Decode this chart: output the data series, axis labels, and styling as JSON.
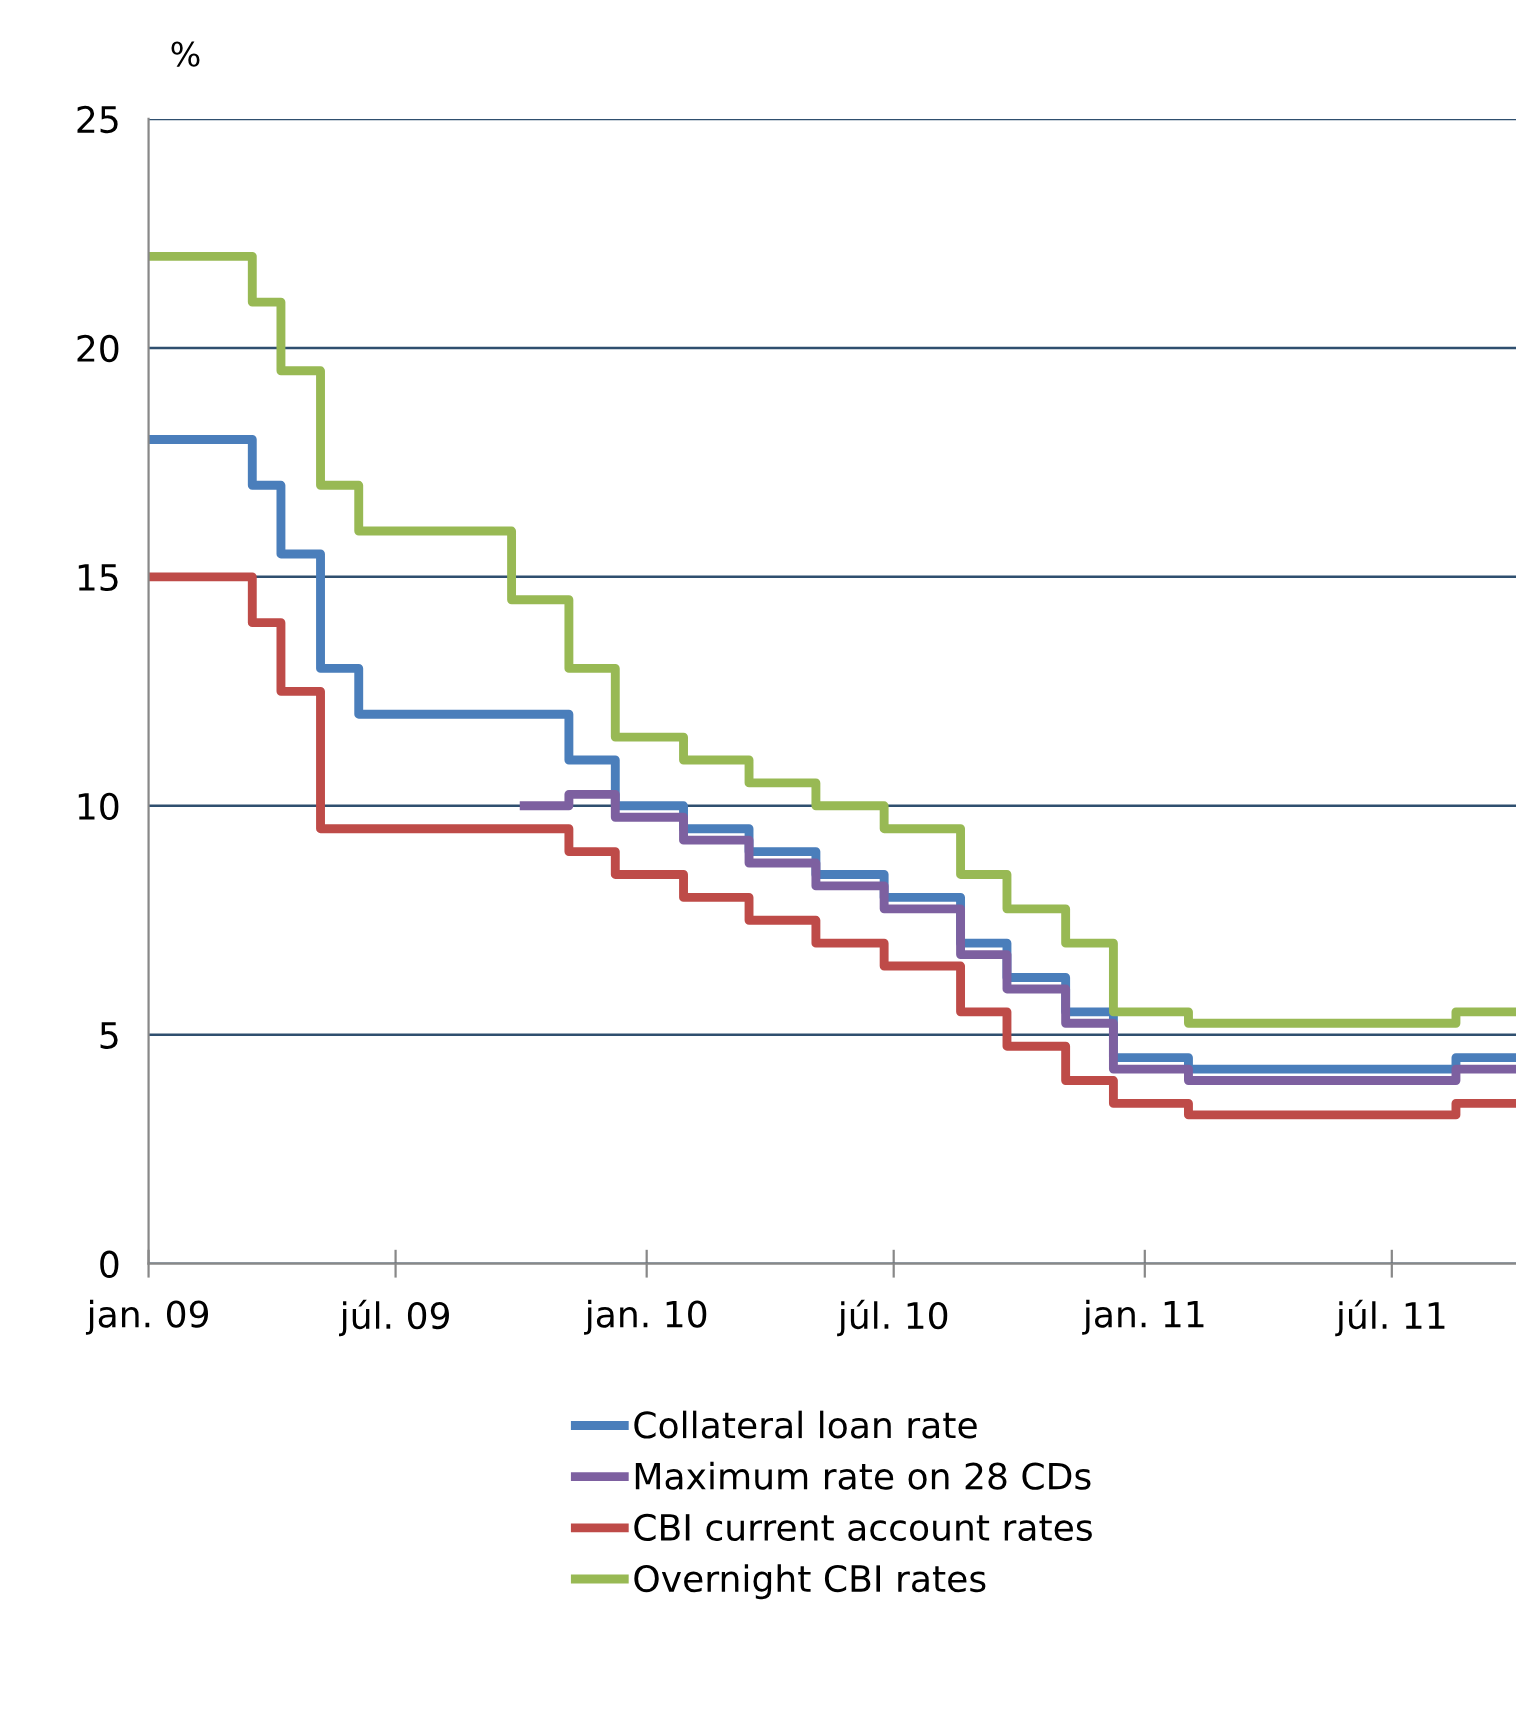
{
  "chart_data": {
    "type": "step",
    "ylabel": "%",
    "xlim": [
      "2009-01-01",
      "2011-09-30"
    ],
    "ylim": [
      0,
      25
    ],
    "yticks": [
      0,
      5,
      10,
      15,
      20,
      25
    ],
    "xticks": [
      {
        "value": "2009-01-01",
        "label": "jan. 09"
      },
      {
        "value": "2009-07-01",
        "label": "júl. 09"
      },
      {
        "value": "2010-01-01",
        "label": "jan. 10"
      },
      {
        "value": "2010-07-01",
        "label": "júl. 10"
      },
      {
        "value": "2011-01-01",
        "label": "jan. 11"
      },
      {
        "value": "2011-07-01",
        "label": "júl. 11"
      }
    ],
    "grid": "y",
    "legend": "bottom",
    "line_style": "solid",
    "marker": "none",
    "series": [
      {
        "name": "Collateral loan rate",
        "color": "#4a7ebb",
        "x": [
          "2009-01-01",
          "2009-03-18",
          "2009-04-08",
          "2009-05-07",
          "2009-06-04",
          "2009-11-05",
          "2009-12-09",
          "2010-01-28",
          "2010-03-17",
          "2010-05-05",
          "2010-06-24",
          "2010-08-19",
          "2010-09-22",
          "2010-11-04",
          "2010-12-09",
          "2011-02-02",
          "2011-08-17",
          "2011-09-30"
        ],
        "values": [
          18,
          17,
          15.5,
          13,
          12,
          11,
          10,
          9.5,
          9,
          8.5,
          8,
          7,
          6.25,
          5.5,
          4.5,
          4.25,
          4.5,
          4.5
        ]
      },
      {
        "name": "Maximum rate on 28 CDs",
        "color": "#7d60a0",
        "x": [
          "2009-09-30",
          "2009-11-05",
          "2009-12-09",
          "2010-01-28",
          "2010-03-17",
          "2010-05-05",
          "2010-06-24",
          "2010-08-19",
          "2010-09-22",
          "2010-11-04",
          "2010-12-09",
          "2011-02-02",
          "2011-08-17",
          "2011-09-30"
        ],
        "values": [
          10,
          10.25,
          9.75,
          9.25,
          8.75,
          8.25,
          7.75,
          6.75,
          6,
          5.25,
          4.25,
          4,
          4.25,
          4.25
        ]
      },
      {
        "name": "CBI current account rates",
        "color": "#be4b48",
        "x": [
          "2009-01-01",
          "2009-03-18",
          "2009-04-08",
          "2009-05-07",
          "2009-11-05",
          "2009-12-09",
          "2010-01-28",
          "2010-03-17",
          "2010-05-05",
          "2010-06-24",
          "2010-08-19",
          "2010-09-22",
          "2010-11-04",
          "2010-12-09",
          "2011-02-02",
          "2011-08-17",
          "2011-09-30"
        ],
        "values": [
          15,
          14,
          12.5,
          9.5,
          9,
          8.5,
          8,
          7.5,
          7,
          6.5,
          5.5,
          4.75,
          4,
          3.5,
          3.25,
          3.5,
          3.5
        ]
      },
      {
        "name": "Overnight CBI rates",
        "color": "#98b954",
        "x": [
          "2009-01-01",
          "2009-03-18",
          "2009-04-08",
          "2009-05-07",
          "2009-06-04",
          "2009-09-24",
          "2009-11-05",
          "2009-12-09",
          "2010-01-28",
          "2010-03-17",
          "2010-05-05",
          "2010-06-24",
          "2010-08-19",
          "2010-09-22",
          "2010-11-04",
          "2010-12-09",
          "2011-02-02",
          "2011-08-17",
          "2011-09-30"
        ],
        "values": [
          22,
          21,
          19.5,
          17,
          16,
          14.5,
          13,
          11.5,
          11,
          10.5,
          10,
          9.5,
          8.5,
          7.75,
          7,
          5.5,
          5.25,
          5.5,
          5.5
        ]
      }
    ]
  }
}
